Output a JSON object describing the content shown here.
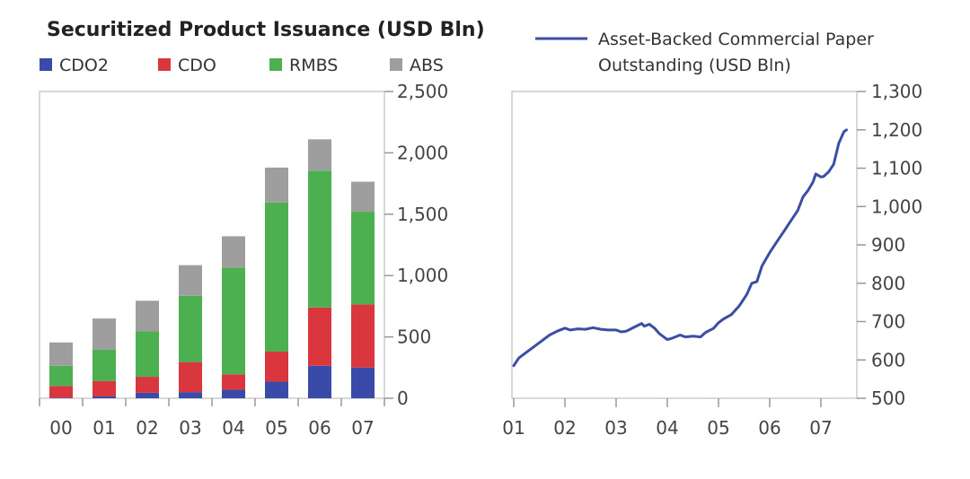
{
  "chart_data": [
    {
      "type": "bar",
      "stacked": true,
      "title": "Securitized Product Issuance (USD Bln)",
      "categories": [
        "00",
        "01",
        "02",
        "03",
        "04",
        "05",
        "06",
        "07"
      ],
      "series": [
        {
          "name": "CDO2",
          "color": "#3a4aa8",
          "values": [
            5,
            15,
            45,
            50,
            70,
            135,
            265,
            250
          ]
        },
        {
          "name": "CDO",
          "color": "#d9363e",
          "values": [
            95,
            125,
            130,
            245,
            125,
            245,
            475,
            515
          ]
        },
        {
          "name": "RMBS",
          "color": "#4caf50",
          "values": [
            165,
            255,
            370,
            540,
            870,
            1215,
            1115,
            755
          ]
        },
        {
          "name": "ABS",
          "color": "#9e9e9e",
          "values": [
            190,
            255,
            250,
            250,
            255,
            285,
            255,
            245
          ]
        }
      ],
      "ylim": [
        0,
        2500
      ],
      "yticks": [
        "0",
        "500",
        "1,000",
        "1,500",
        "2,000",
        "2,500"
      ],
      "ytick_values": [
        0,
        500,
        1000,
        1500,
        2000,
        2500
      ],
      "legend_position": "top"
    },
    {
      "type": "line",
      "title": "",
      "xticks": [
        "01",
        "02",
        "03",
        "04",
        "05",
        "06",
        "07"
      ],
      "xtick_values": [
        2001,
        2002,
        2003,
        2004,
        2005,
        2006,
        2007
      ],
      "xlim": [
        2001,
        2007.65
      ],
      "ylim": [
        500,
        1300
      ],
      "yticks": [
        "500",
        "600",
        "700",
        "800",
        "900",
        "1,000",
        "1,100",
        "1,200",
        "1,300"
      ],
      "ytick_values": [
        500,
        600,
        700,
        800,
        900,
        1000,
        1100,
        1200,
        1300
      ],
      "series": [
        {
          "name": "Asset-Backed Commercial Paper Outstanding (USD Bln)",
          "color": "#3b4ea3",
          "points": [
            [
              2001.0,
              585
            ],
            [
              2001.1,
              605
            ],
            [
              2001.25,
              620
            ],
            [
              2001.4,
              635
            ],
            [
              2001.55,
              650
            ],
            [
              2001.7,
              665
            ],
            [
              2001.85,
              675
            ],
            [
              2002.0,
              683
            ],
            [
              2002.1,
              678
            ],
            [
              2002.25,
              681
            ],
            [
              2002.4,
              680
            ],
            [
              2002.55,
              684
            ],
            [
              2002.7,
              680
            ],
            [
              2002.85,
              678
            ],
            [
              2003.0,
              678
            ],
            [
              2003.1,
              673
            ],
            [
              2003.2,
              675
            ],
            [
              2003.35,
              685
            ],
            [
              2003.5,
              695
            ],
            [
              2003.55,
              688
            ],
            [
              2003.65,
              693
            ],
            [
              2003.75,
              683
            ],
            [
              2003.85,
              668
            ],
            [
              2004.0,
              653
            ],
            [
              2004.1,
              657
            ],
            [
              2004.25,
              665
            ],
            [
              2004.35,
              660
            ],
            [
              2004.5,
              662
            ],
            [
              2004.65,
              660
            ],
            [
              2004.75,
              672
            ],
            [
              2004.9,
              682
            ],
            [
              2005.0,
              697
            ],
            [
              2005.1,
              707
            ],
            [
              2005.25,
              718
            ],
            [
              2005.4,
              740
            ],
            [
              2005.55,
              770
            ],
            [
              2005.65,
              800
            ],
            [
              2005.75,
              804
            ],
            [
              2005.85,
              845
            ],
            [
              2006.0,
              880
            ],
            [
              2006.15,
              910
            ],
            [
              2006.3,
              940
            ],
            [
              2006.45,
              970
            ],
            [
              2006.55,
              990
            ],
            [
              2006.65,
              1025
            ],
            [
              2006.75,
              1042
            ],
            [
              2006.85,
              1065
            ],
            [
              2006.9,
              1085
            ],
            [
              2007.0,
              1077
            ],
            [
              2007.05,
              1078
            ],
            [
              2007.15,
              1090
            ],
            [
              2007.25,
              1110
            ],
            [
              2007.35,
              1165
            ],
            [
              2007.45,
              1195
            ],
            [
              2007.5,
              1200
            ]
          ]
        }
      ],
      "legend_position": "top"
    }
  ]
}
